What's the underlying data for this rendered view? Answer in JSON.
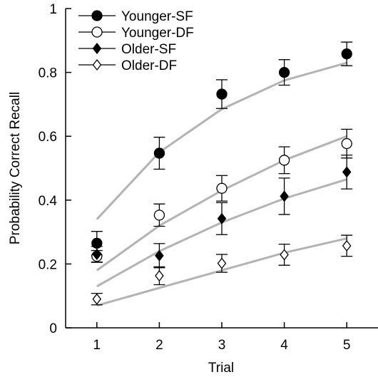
{
  "chart_data": {
    "type": "scatter",
    "title": "",
    "xlabel": "Trial",
    "ylabel": "Probability Correct Recall",
    "x": [
      1,
      2,
      3,
      4,
      5
    ],
    "xlim": [
      0.5,
      5.5
    ],
    "ylim": [
      0,
      1
    ],
    "xticks": [
      "1",
      "2",
      "3",
      "4",
      "5"
    ],
    "yticks": [
      "0",
      "0.2",
      "0.4",
      "0.6",
      "0.8",
      "1"
    ],
    "legend_position": "top-left",
    "grid": false,
    "colors": {
      "fit_line": "#b3b3b3",
      "marker": "#000000",
      "background": "#ffffff"
    },
    "series": [
      {
        "name": "Younger-SF",
        "marker": "filled-circle",
        "values": [
          0.265,
          0.547,
          0.732,
          0.8,
          0.858
        ],
        "errors": [
          0.037,
          0.05,
          0.045,
          0.04,
          0.037
        ],
        "fit": [
          0.34,
          0.55,
          0.685,
          0.775,
          0.83
        ]
      },
      {
        "name": "Younger-DF",
        "marker": "open-circle",
        "values": [
          0.224,
          0.353,
          0.437,
          0.525,
          0.577
        ],
        "errors": [
          0.018,
          0.035,
          0.04,
          0.042,
          0.045
        ],
        "fit": [
          0.18,
          0.32,
          0.43,
          0.525,
          0.6
        ]
      },
      {
        "name": "Older-SF",
        "marker": "filled-diamond",
        "values": [
          0.23,
          0.226,
          0.342,
          0.412,
          0.488
        ],
        "errors": [
          0.025,
          0.038,
          0.05,
          0.057,
          0.053
        ],
        "fit": [
          0.13,
          0.24,
          0.33,
          0.405,
          0.465
        ]
      },
      {
        "name": "Older-DF",
        "marker": "open-diamond",
        "values": [
          0.09,
          0.163,
          0.202,
          0.229,
          0.257
        ],
        "errors": [
          0.018,
          0.028,
          0.028,
          0.033,
          0.033
        ],
        "fit": [
          0.07,
          0.125,
          0.18,
          0.235,
          0.28
        ]
      }
    ]
  }
}
